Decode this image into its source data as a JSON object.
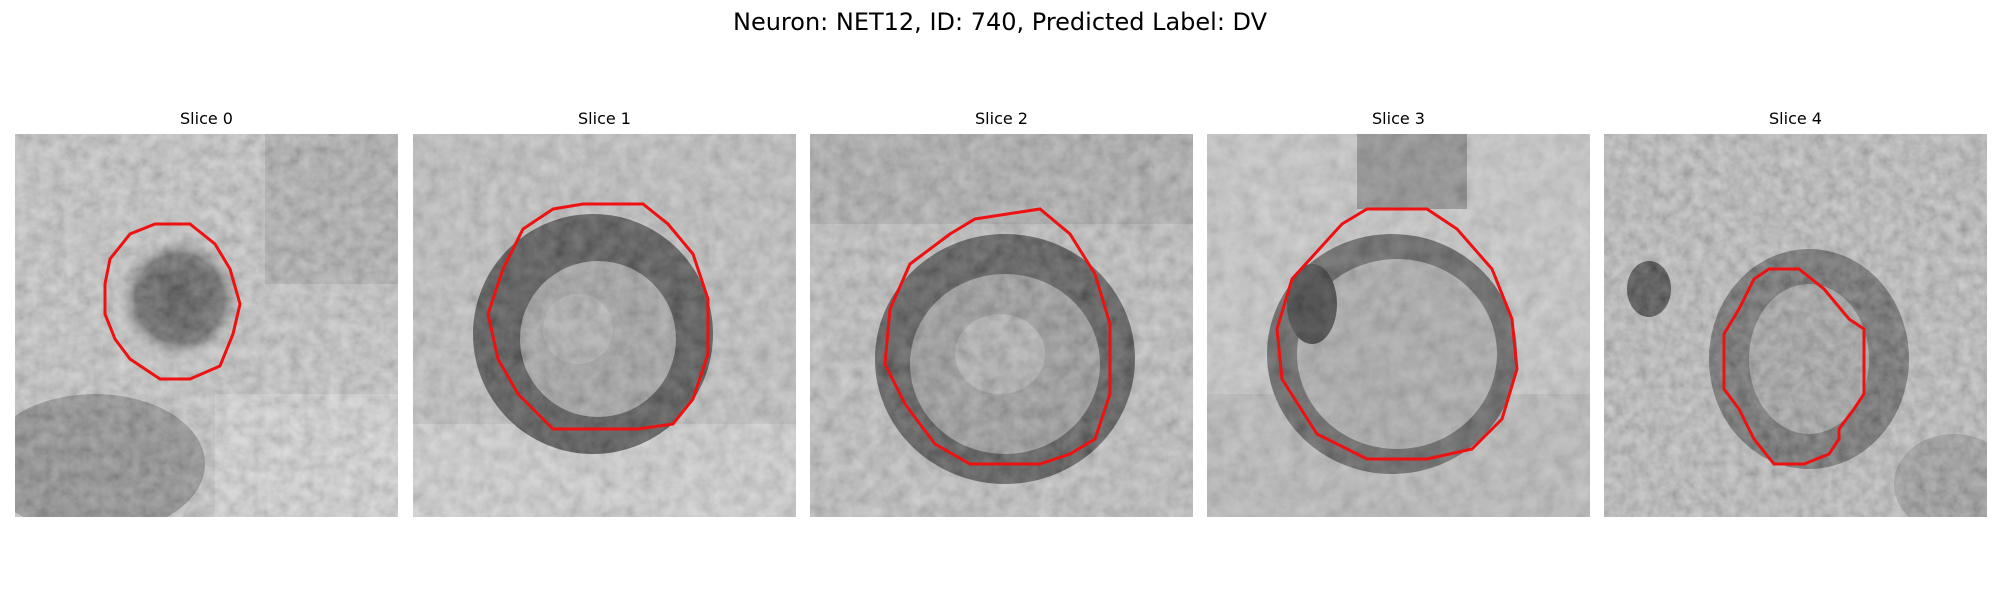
{
  "figure": {
    "title": "Neuron: NET12, ID: 740, Predicted Label: DV"
  },
  "slices": [
    {
      "label": "Slice 0"
    },
    {
      "label": "Slice 1"
    },
    {
      "label": "Slice 2"
    },
    {
      "label": "Slice 3"
    },
    {
      "label": "Slice 4"
    }
  ],
  "colors": {
    "contour": "#ee1111",
    "background": "#ffffff"
  }
}
